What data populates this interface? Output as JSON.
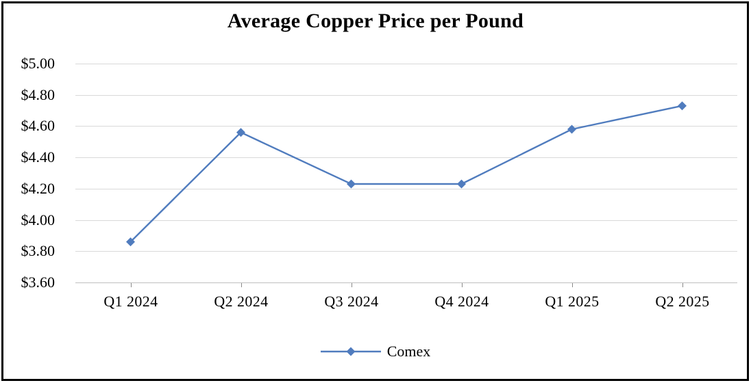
{
  "chart": {
    "title": "Average Copper Price per Pound",
    "legend": {
      "series_label": "Comex",
      "marker_icon": "diamond-line-marker"
    }
  },
  "chart_data": {
    "type": "line",
    "title": "Average Copper Price per Pound",
    "categories": [
      "Q1 2024",
      "Q2 2024",
      "Q3 2024",
      "Q4 2024",
      "Q1 2025",
      "Q2 2025"
    ],
    "series": [
      {
        "name": "Comex",
        "values": [
          3.86,
          4.56,
          4.23,
          4.23,
          4.58,
          4.73
        ],
        "color": "#507CBE",
        "marker": "diamond"
      }
    ],
    "xlabel": "",
    "ylabel": "",
    "ylim": [
      3.6,
      5.0
    ],
    "yticks": [
      3.6,
      3.8,
      4.0,
      4.2,
      4.4,
      4.6,
      4.8,
      5.0
    ],
    "ytick_labels": [
      "$3.60",
      "$3.80",
      "$4.00",
      "$4.20",
      "$4.40",
      "$4.60",
      "$4.80",
      "$5.00"
    ],
    "grid": true,
    "legend_position": "bottom",
    "colors": {
      "gridline": "#D9D9D9",
      "axis_line": "#BFBFBF",
      "tick_mark": "#898989",
      "text": "#000000",
      "frame_border": "#000000",
      "background": "#FFFFFF"
    }
  }
}
